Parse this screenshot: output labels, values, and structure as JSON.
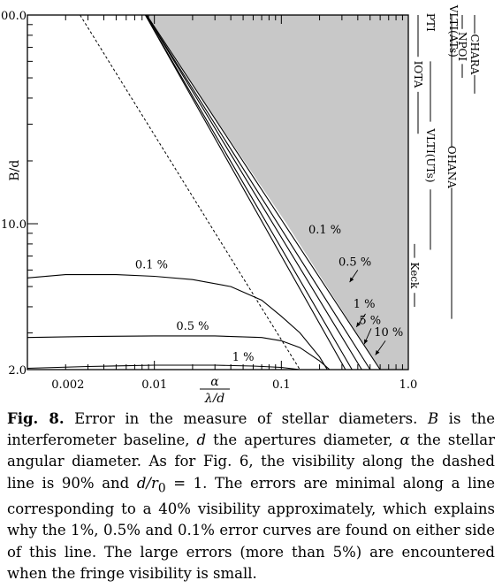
{
  "chart_data": {
    "type": "line",
    "xlabel": "α / λ/d",
    "xlabel_numerator": "α",
    "xlabel_denominator": "λ/d",
    "ylabel": "B/d",
    "x_scale": "log",
    "y_scale": "log",
    "xlim": [
      0.001,
      1.0
    ],
    "ylim": [
      2.0,
      100.0
    ],
    "x_tick_labels": [
      {
        "value": 0.002,
        "label": "0.002"
      },
      {
        "value": 0.01,
        "label": "0.01"
      },
      {
        "value": 0.1,
        "label": "0.1"
      },
      {
        "value": 1.0,
        "label": "1.0"
      }
    ],
    "y_tick_labels": [
      {
        "value": 100,
        "label": "100.0"
      },
      {
        "value": 10,
        "label": "10.0"
      },
      {
        "value": 2,
        "label": "2.0"
      }
    ],
    "shaded_region": {
      "boundary": [
        [
          0.0085,
          100
        ],
        [
          0.11,
          10
        ],
        [
          0.6,
          2
        ],
        [
          1.0,
          2
        ],
        [
          1.0,
          100
        ]
      ],
      "color": "#c8c8c8"
    },
    "dashed_line": {
      "points": [
        [
          0.0026,
          100
        ],
        [
          0.14,
          2
        ]
      ],
      "visibility": "90%"
    },
    "curves": [
      {
        "name": "0.1 %",
        "label_at": [
          0.22,
          9.0
        ],
        "points": [
          [
            0.0085,
            100
          ],
          [
            0.32,
            2
          ]
        ]
      },
      {
        "name": "0.5 %",
        "label_at": [
          0.38,
          6.3
        ],
        "points": [
          [
            0.0085,
            100
          ],
          [
            0.36,
            2
          ]
        ]
      },
      {
        "name": "1 %",
        "label_at": [
          0.45,
          3.95
        ],
        "points": [
          [
            0.0086,
            100
          ],
          [
            0.43,
            2
          ]
        ]
      },
      {
        "name": "5 %",
        "label_at": [
          0.5,
          3.3
        ],
        "points": [
          [
            0.0086,
            100
          ],
          [
            0.5,
            2
          ]
        ]
      },
      {
        "name": "10 %",
        "label_at": [
          0.7,
          2.9
        ],
        "points": [
          [
            0.0087,
            100
          ],
          [
            0.6,
            2
          ]
        ]
      },
      {
        "name": "0.1 %",
        "label_at": [
          0.0095,
          6.1
        ],
        "points": [
          [
            0.001,
            5.5
          ],
          [
            0.002,
            5.7
          ],
          [
            0.005,
            5.7
          ],
          [
            0.01,
            5.6
          ],
          [
            0.02,
            5.4
          ],
          [
            0.04,
            5.0
          ],
          [
            0.07,
            4.3
          ],
          [
            0.1,
            3.6
          ],
          [
            0.14,
            3.0
          ],
          [
            0.2,
            2.3
          ],
          [
            0.23,
            2.0
          ]
        ]
      },
      {
        "name": "0.5 %",
        "label_at": [
          0.02,
          3.1
        ],
        "points": [
          [
            0.001,
            2.85
          ],
          [
            0.003,
            2.88
          ],
          [
            0.01,
            2.9
          ],
          [
            0.03,
            2.9
          ],
          [
            0.07,
            2.85
          ],
          [
            0.1,
            2.75
          ],
          [
            0.14,
            2.55
          ],
          [
            0.2,
            2.2
          ],
          [
            0.24,
            2.0
          ]
        ]
      },
      {
        "name": "1 %",
        "label_at": [
          0.05,
          2.2
        ],
        "points": [
          [
            0.001,
            2.03
          ],
          [
            0.003,
            2.07
          ],
          [
            0.01,
            2.1
          ],
          [
            0.03,
            2.1
          ],
          [
            0.06,
            2.08
          ],
          [
            0.1,
            2.05
          ],
          [
            0.14,
            2.0
          ]
        ]
      }
    ],
    "interferometers": [
      {
        "name": "CHARA",
        "ymin": 42,
        "ymax": 100
      },
      {
        "name": "NPOI",
        "ymin": 50,
        "ymax": 100
      },
      {
        "name": "VLTI(ATs)",
        "ymin": 70,
        "ymax": 100
      },
      {
        "name": "PTI",
        "ymin": 85,
        "ymax": 100
      },
      {
        "name": "IOTA",
        "ymin": 27,
        "ymax": 100
      },
      {
        "name": "VLTI(UTs)",
        "ymin": 7.5,
        "ymax": 60
      },
      {
        "name": "OHANA",
        "ymin": 3.5,
        "ymax": 100
      },
      {
        "name": "Keck",
        "ymin": 4.0,
        "ymax": 8.0
      }
    ]
  },
  "caption": {
    "label": "Fig. 8.",
    "text_1": " Error in the measure of stellar diameters. ",
    "sym_B": "B",
    "text_2": " is the interferometer baseline, ",
    "sym_d": "d",
    "text_3": " the apertures diameter, ",
    "sym_alpha": "α",
    "text_4": " the stellar angular diameter. As for Fig. 6, the visibility along the dashed line is 90% and ",
    "sym_ratio": "d/r",
    "sub_0": "0",
    "text_5": " = 1. The errors are minimal along a line corresponding to a 40% visibility approximately, which explains why the 1%, 0.5% and 0.1% error curves are found on either side of this line. The large errors (more than 5%) are encountered when the fringe visibility is small."
  }
}
